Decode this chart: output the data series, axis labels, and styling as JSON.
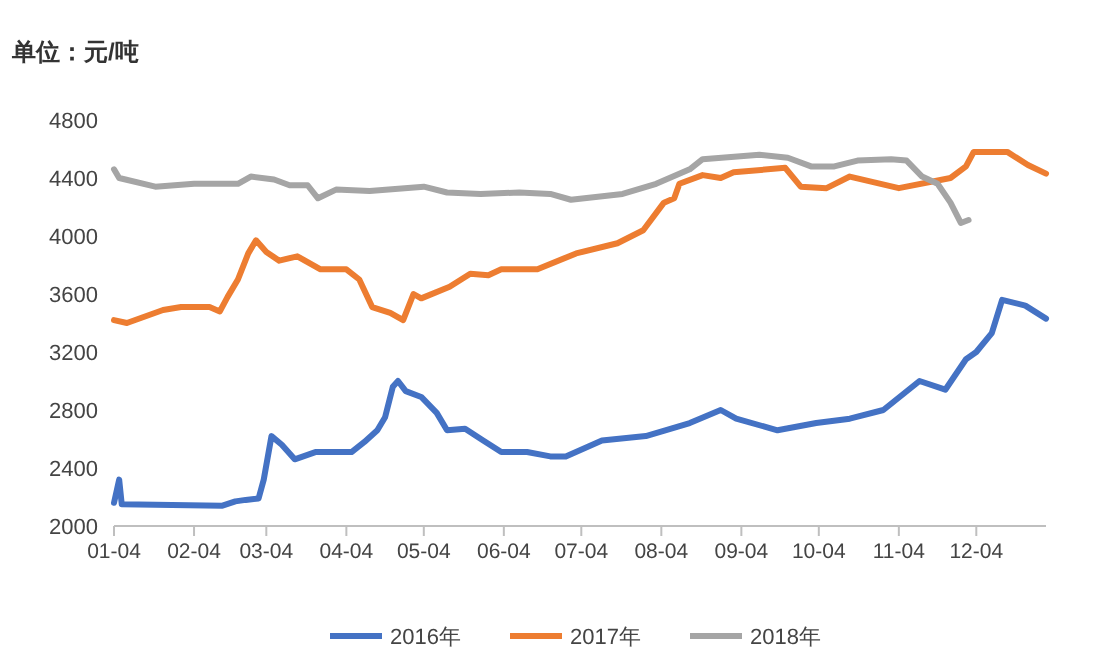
{
  "chart_data": {
    "type": "line",
    "ylabel": "单位：元/吨",
    "xlim": [
      "--01-04",
      "--12-31"
    ],
    "xticks": [
      {
        "value": "--01-04",
        "label": "01-04"
      },
      {
        "value": "--02-04",
        "label": "02-04"
      },
      {
        "value": "--03-04",
        "label": "03-04"
      },
      {
        "value": "--04-04",
        "label": "04-04"
      },
      {
        "value": "--05-04",
        "label": "05-04"
      },
      {
        "value": "--06-04",
        "label": "06-04"
      },
      {
        "value": "--07-04",
        "label": "07-04"
      },
      {
        "value": "--08-04",
        "label": "08-04"
      },
      {
        "value": "--09-04",
        "label": "09-04"
      },
      {
        "value": "--10-04",
        "label": "10-04"
      },
      {
        "value": "--11-04",
        "label": "11-04"
      },
      {
        "value": "--12-04",
        "label": "12-04"
      }
    ],
    "ylim": [
      2000,
      4800
    ],
    "yticks": [
      2000,
      2400,
      2800,
      3200,
      3600,
      4000,
      4400,
      4800
    ],
    "legend": "bottom",
    "line_style": "solid",
    "series": [
      {
        "name": "2016年",
        "color": "#4472c4",
        "x": [
          "--01-04",
          "--01-06",
          "--01-07",
          "--02-15",
          "--02-20",
          "--02-24",
          "--03-01",
          "--03-03",
          "--03-06",
          "--03-10",
          "--03-15",
          "--03-23",
          "--04-06",
          "--04-11",
          "--04-16",
          "--04-19",
          "--04-22",
          "--04-24",
          "--04-27",
          "--05-03",
          "--05-09",
          "--05-13",
          "--05-20",
          "--05-27",
          "--06-03",
          "--06-13",
          "--06-22",
          "--06-28",
          "--07-12",
          "--07-29",
          "--08-15",
          "--08-27",
          "--09-02",
          "--09-18",
          "--10-03",
          "--10-16",
          "--10-29",
          "--11-12",
          "--11-22",
          "--11-30",
          "--12-04",
          "--12-10",
          "--12-14",
          "--12-23",
          "--12-31"
        ],
        "values": [
          2160,
          2320,
          2150,
          2140,
          2170,
          2180,
          2190,
          2320,
          2620,
          2560,
          2460,
          2510,
          2510,
          2580,
          2660,
          2750,
          2960,
          3000,
          2930,
          2890,
          2780,
          2660,
          2670,
          2590,
          2510,
          2510,
          2480,
          2480,
          2590,
          2620,
          2710,
          2800,
          2740,
          2660,
          2710,
          2740,
          2800,
          3000,
          2940,
          3150,
          3200,
          3330,
          3560,
          3520,
          3430
        ]
      },
      {
        "name": "2017年",
        "color": "#ed7d31",
        "x": [
          "--01-04",
          "--01-09",
          "--01-23",
          "--01-30",
          "--02-10",
          "--02-14",
          "--02-17",
          "--02-21",
          "--02-25",
          "--02-28",
          "--03-04",
          "--03-09",
          "--03-16",
          "--03-25",
          "--04-04",
          "--04-09",
          "--04-14",
          "--04-21",
          "--04-26",
          "--04-30",
          "--05-03",
          "--05-14",
          "--05-22",
          "--05-29",
          "--06-03",
          "--06-17",
          "--07-02",
          "--07-18",
          "--07-28",
          "--08-05",
          "--08-09",
          "--08-11",
          "--08-20",
          "--08-27",
          "--09-01",
          "--09-21",
          "--09-27",
          "--10-07",
          "--10-16",
          "--11-04",
          "--11-24",
          "--11-30",
          "--12-03",
          "--12-16",
          "--12-24",
          "--12-31"
        ],
        "values": [
          3420,
          3400,
          3490,
          3510,
          3510,
          3480,
          3580,
          3700,
          3880,
          3970,
          3890,
          3830,
          3860,
          3770,
          3770,
          3700,
          3510,
          3470,
          3420,
          3600,
          3570,
          3650,
          3740,
          3730,
          3770,
          3770,
          3880,
          3950,
          4040,
          4230,
          4260,
          4360,
          4420,
          4400,
          4440,
          4470,
          4340,
          4330,
          4410,
          4330,
          4400,
          4480,
          4580,
          4580,
          4490,
          4430
        ]
      },
      {
        "name": "2018年",
        "color": "#a5a5a5",
        "x": [
          "--01-04",
          "--01-06",
          "--01-20",
          "--02-04",
          "--02-21",
          "--02-26",
          "--03-07",
          "--03-13",
          "--03-20",
          "--03-24",
          "--03-31",
          "--04-13",
          "--05-04",
          "--05-13",
          "--05-26",
          "--06-10",
          "--06-22",
          "--06-30",
          "--07-20",
          "--08-02",
          "--08-15",
          "--08-20",
          "--09-11",
          "--09-22",
          "--10-01",
          "--10-10",
          "--10-19",
          "--11-01",
          "--11-07",
          "--11-13",
          "--11-19",
          "--11-24",
          "--11-28",
          "--12-01"
        ],
        "values": [
          4460,
          4400,
          4340,
          4360,
          4360,
          4410,
          4390,
          4350,
          4350,
          4260,
          4320,
          4310,
          4340,
          4300,
          4290,
          4300,
          4290,
          4250,
          4290,
          4360,
          4460,
          4530,
          4560,
          4540,
          4480,
          4480,
          4520,
          4530,
          4520,
          4410,
          4360,
          4230,
          4090,
          4110
        ]
      }
    ]
  }
}
